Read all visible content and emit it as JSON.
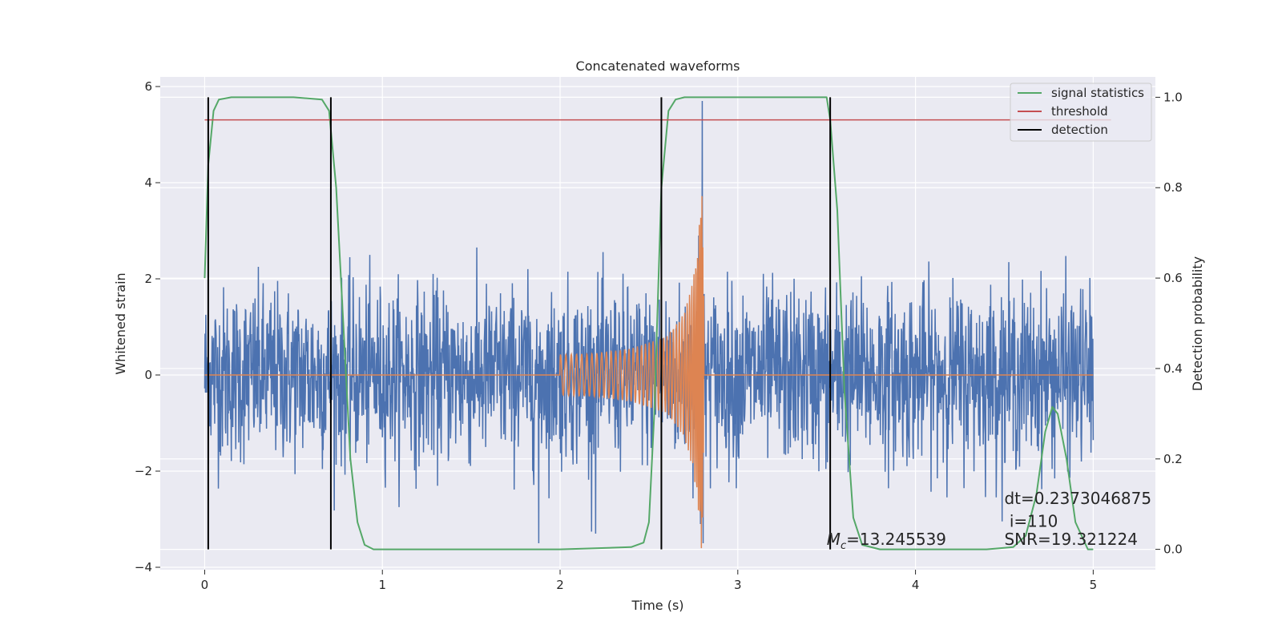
{
  "chart_data": {
    "type": "line",
    "title": "Concatenated waveforms",
    "xlabel": "Time (s)",
    "ylabel": "Whitened strain",
    "y2label": "Detection probability",
    "xlim": [
      -0.25,
      5.35
    ],
    "ylim": [
      -4.05,
      6.2
    ],
    "y2lim": [
      -0.045,
      1.045
    ],
    "xticks": [
      0,
      1,
      2,
      3,
      4,
      5
    ],
    "yticks": [
      -4,
      -2,
      0,
      2,
      4,
      6
    ],
    "y2ticks": [
      0.0,
      0.2,
      0.4,
      0.6,
      0.8,
      1.0
    ],
    "xtick_labels": [
      "0",
      "1",
      "2",
      "3",
      "4",
      "5"
    ],
    "ytick_labels": [
      "−4",
      "−2",
      "0",
      "2",
      "4",
      "6"
    ],
    "y2tick_labels": [
      "0.0",
      "0.2",
      "0.4",
      "0.6",
      "0.8",
      "1.0"
    ],
    "grid": true,
    "legend_position": "top-right",
    "legend": [
      {
        "label": "signal statistics",
        "color": "#55a868"
      },
      {
        "label": "threshold",
        "color": "#c44e52"
      },
      {
        "label": "detection",
        "color": "#000000"
      }
    ],
    "series": [
      {
        "role": "whitened-noise",
        "color": "#4c72b0",
        "axis": "left",
        "x_range": [
          0,
          5
        ],
        "typical_amplitude": 1.5,
        "peak_max": 5.7,
        "peak_min": -3.5
      },
      {
        "role": "injected-chirp",
        "color": "#dd8452",
        "axis": "left",
        "x": [
          2.0,
          2.2,
          2.4,
          2.6,
          2.7,
          2.75,
          2.78,
          2.8,
          2.82
        ],
        "envelope": [
          0.42,
          0.45,
          0.55,
          0.8,
          1.3,
          2.0,
          3.0,
          3.85,
          0.0
        ]
      },
      {
        "name": "signal statistics",
        "color": "#55a868",
        "axis": "right",
        "x": [
          0.0,
          0.02,
          0.05,
          0.08,
          0.15,
          0.5,
          0.66,
          0.7,
          0.74,
          0.78,
          0.82,
          0.86,
          0.9,
          0.95,
          1.2,
          2.0,
          2.4,
          2.47,
          2.5,
          2.53,
          2.57,
          2.61,
          2.65,
          2.7,
          3.5,
          3.52,
          3.56,
          3.6,
          3.65,
          3.7,
          3.8,
          4.4,
          4.55,
          4.62,
          4.68,
          4.73,
          4.77,
          4.8,
          4.85,
          4.9,
          4.97,
          5.0
        ],
        "values": [
          0.6,
          0.85,
          0.97,
          0.995,
          1.0,
          1.0,
          0.995,
          0.97,
          0.8,
          0.5,
          0.2,
          0.06,
          0.01,
          0.0,
          0.0,
          0.0,
          0.005,
          0.015,
          0.06,
          0.3,
          0.8,
          0.97,
          0.995,
          1.0,
          1.0,
          0.95,
          0.75,
          0.35,
          0.07,
          0.01,
          0.0,
          0.0,
          0.005,
          0.03,
          0.12,
          0.26,
          0.315,
          0.3,
          0.2,
          0.06,
          0.0,
          0.0
        ]
      },
      {
        "name": "threshold",
        "color": "#c44e52",
        "axis": "right",
        "x": [
          0,
          5.1
        ],
        "values": [
          0.95,
          0.95
        ]
      }
    ],
    "detections": {
      "color": "#000000",
      "x": [
        0.02,
        0.71,
        2.57,
        3.52
      ],
      "y_range": [
        0.0,
        1.0
      ]
    },
    "annotations": [
      {
        "id": "mc",
        "prefix": "M",
        "subscript": "c",
        "text": "=13.245539",
        "x": 3.5,
        "y": 0.01
      },
      {
        "id": "snr",
        "text": "SNR=19.321224",
        "x": 4.5,
        "y": 0.01
      },
      {
        "id": "dt",
        "text": "dt=0.2373046875",
        "x": 4.5,
        "y": 0.1
      },
      {
        "id": "i",
        "text": " i=110",
        "x": 4.5,
        "y": 0.05
      }
    ]
  }
}
